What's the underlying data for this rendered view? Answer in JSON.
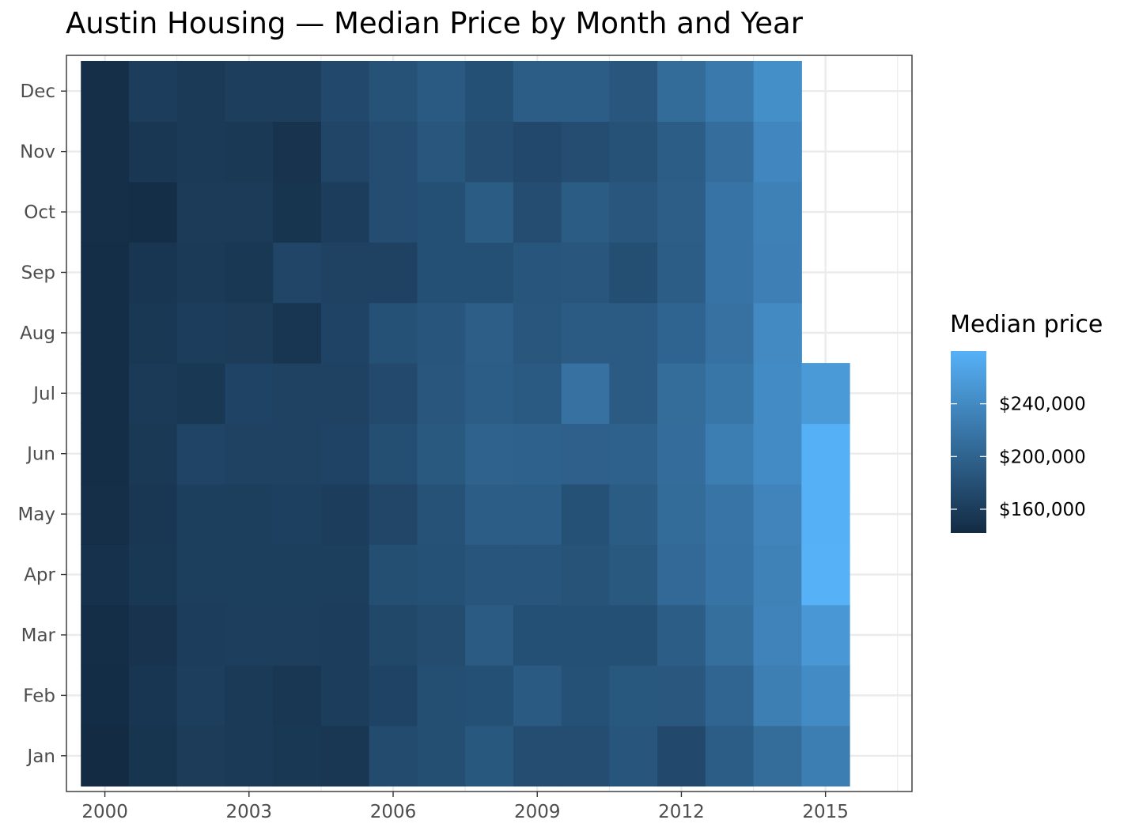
{
  "chart_data": {
    "type": "heatmap",
    "title": "Austin Housing — Median Price by Month and Year",
    "legend": {
      "title": "Median price",
      "position": "right",
      "breaks": [
        160000,
        200000,
        240000
      ],
      "labels": [
        "$160,000",
        "$200,000",
        "$240,000"
      ],
      "range": [
        142000,
        280000
      ],
      "color_low": "#132B43",
      "color_high": "#56B1F7"
    },
    "x_ticks": [
      2000,
      2003,
      2006,
      2009,
      2012,
      2015
    ],
    "x_tick_labels": [
      "2000",
      "2003",
      "2006",
      "2009",
      "2012",
      "2015"
    ],
    "xlim": [
      1999.2,
      2016.8
    ],
    "months": [
      "Jan",
      "Feb",
      "Mar",
      "Apr",
      "May",
      "Jun",
      "Jul",
      "Aug",
      "Sep",
      "Oct",
      "Nov",
      "Dec"
    ],
    "years": [
      2000,
      2001,
      2002,
      2003,
      2004,
      2005,
      2006,
      2007,
      2008,
      2009,
      2010,
      2011,
      2012,
      2013,
      2014,
      2015
    ],
    "grid": true,
    "values": [
      [
        142000,
        144000,
        145000,
        148000,
        146000,
        145000,
        145000,
        145000,
        145000,
        146000,
        146000,
        146000
      ],
      [
        152000,
        153000,
        150000,
        155000,
        154000,
        156000,
        157000,
        155000,
        153000,
        145000,
        154000,
        161000
      ],
      [
        160000,
        162000,
        161000,
        163000,
        163000,
        168000,
        155000,
        161000,
        157000,
        158000,
        157000,
        157000
      ],
      [
        157000,
        157000,
        162000,
        163000,
        163000,
        166000,
        167000,
        160000,
        155000,
        158000,
        156000,
        162000
      ],
      [
        155000,
        154000,
        162000,
        163000,
        164000,
        166000,
        166000,
        153000,
        169000,
        152000,
        150000,
        162000
      ],
      [
        154000,
        161000,
        161000,
        163000,
        161000,
        167000,
        166000,
        167000,
        166000,
        161000,
        169000,
        173000
      ],
      [
        175000,
        167000,
        171000,
        178000,
        170000,
        178000,
        174000,
        181000,
        166000,
        177000,
        177000,
        182000
      ],
      [
        178000,
        178000,
        176000,
        181000,
        182000,
        189000,
        186000,
        185000,
        180000,
        180000,
        186000,
        190000
      ],
      [
        188000,
        180000,
        191000,
        185000,
        194000,
        199000,
        193000,
        195000,
        180000,
        192000,
        177000,
        180000
      ],
      [
        177000,
        190000,
        180000,
        185000,
        194000,
        198000,
        190000,
        186000,
        185000,
        177000,
        173000,
        194000
      ],
      [
        177000,
        181000,
        180000,
        183000,
        181000,
        197000,
        214000,
        191000,
        186000,
        192000,
        177000,
        194000
      ],
      [
        185000,
        188000,
        180000,
        189000,
        192000,
        198000,
        191000,
        191000,
        178000,
        186000,
        182000,
        186000
      ],
      [
        173000,
        187000,
        193000,
        206000,
        208000,
        210000,
        209000,
        201000,
        193000,
        195000,
        193000,
        208000
      ],
      [
        193000,
        202000,
        212000,
        216000,
        218000,
        227000,
        219000,
        214000,
        217000,
        217000,
        211000,
        222000
      ],
      [
        209000,
        228000,
        233000,
        232000,
        234000,
        241000,
        241000,
        240000,
        230000,
        231000,
        236000,
        245000
      ],
      [
        227000,
        241000,
        253000,
        280000,
        279000,
        279000,
        256000,
        null,
        null,
        null,
        null,
        null
      ]
    ]
  }
}
